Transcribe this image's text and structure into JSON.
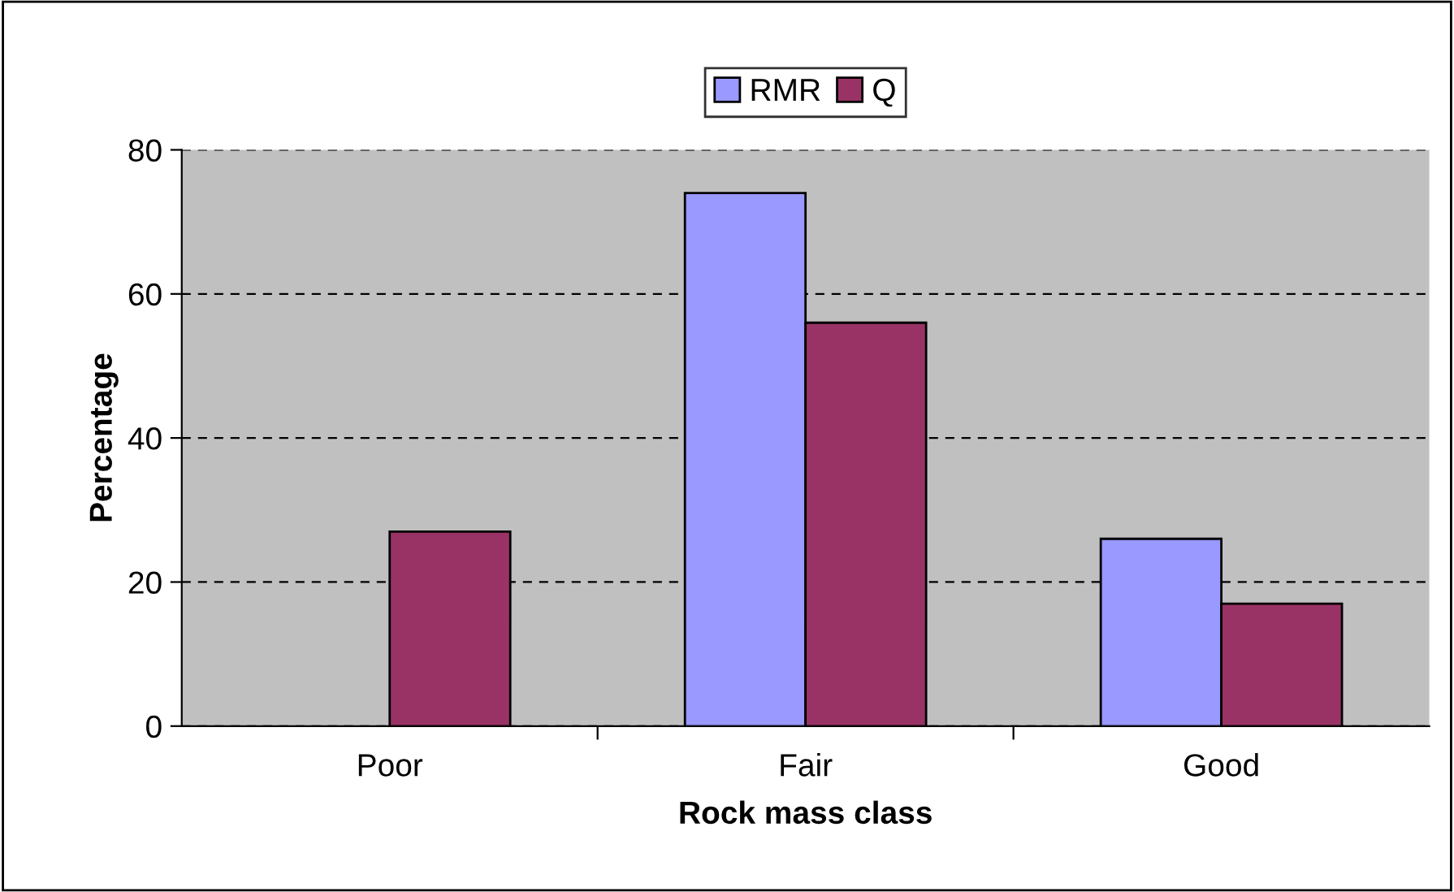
{
  "chart_data": {
    "type": "bar",
    "xlabel": "Rock mass class",
    "ylabel": "Percentage",
    "categories": [
      "Poor",
      "Fair",
      "Good"
    ],
    "series": [
      {
        "name": "RMR",
        "color": "#9999ff",
        "values": [
          null,
          74,
          26
        ]
      },
      {
        "name": "Q",
        "color": "#993366",
        "values": [
          27,
          56,
          17
        ]
      }
    ],
    "ylim": [
      0,
      80
    ],
    "yticks": [
      0,
      20,
      40,
      60,
      80
    ],
    "grid": "y",
    "legend": "top"
  }
}
